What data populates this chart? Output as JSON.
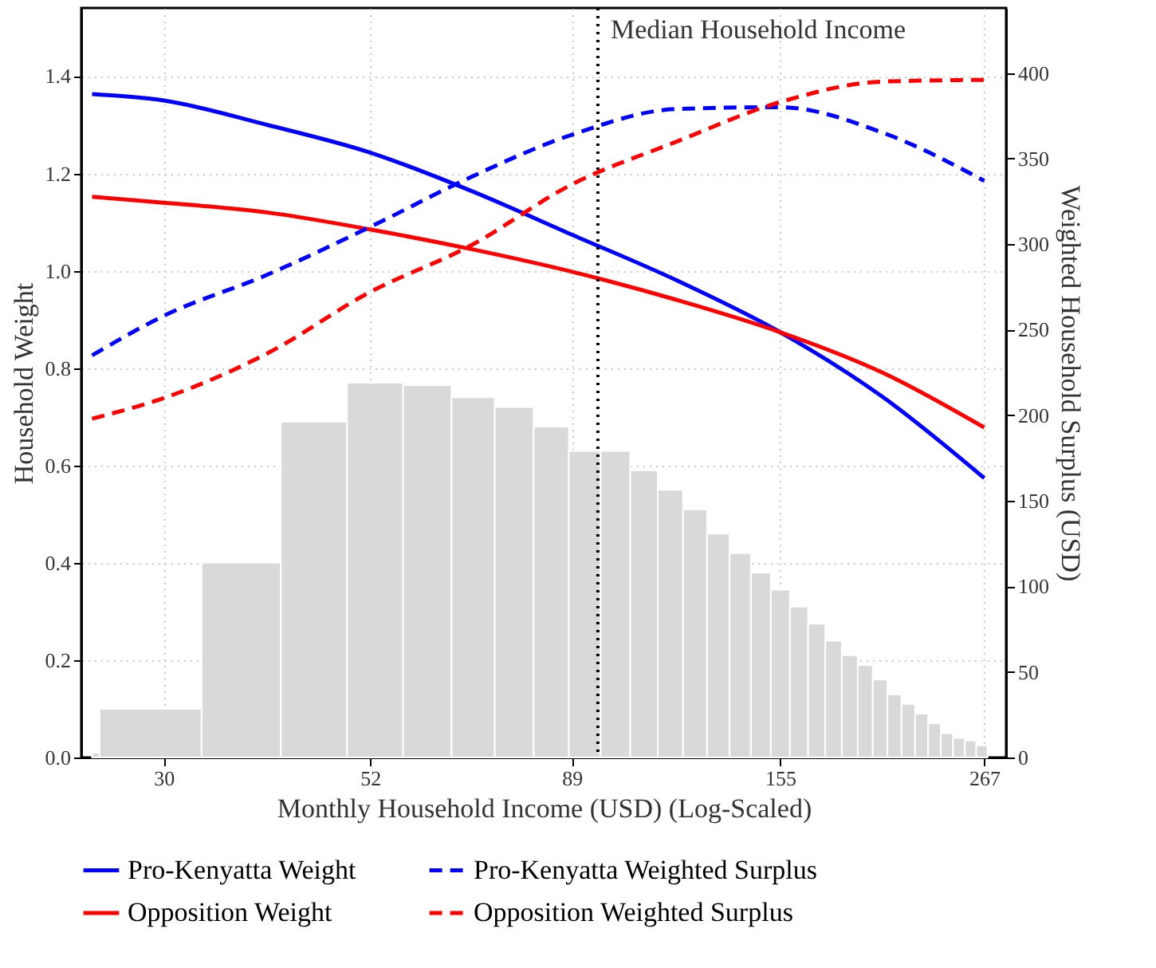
{
  "chart_data": {
    "type": "line",
    "xlabel": "Monthly Household Income (USD) (Log-Scaled)",
    "ylabel": "Household Weight",
    "y2label": "Weighted Household Surplus (USD)",
    "log": "x",
    "xlim": [
      24.1,
      283
    ],
    "xticks": [
      30,
      52,
      89,
      155,
      267
    ],
    "ylim": [
      0,
      1.54
    ],
    "yticks": [
      {
        "value": 0,
        "label": "0.0"
      },
      {
        "value": 0.2,
        "label": "0.2"
      },
      {
        "value": 0.4,
        "label": "0.4"
      },
      {
        "value": 0.6,
        "label": "0.6"
      },
      {
        "value": 0.8,
        "label": "0.8"
      },
      {
        "value": 1.0,
        "label": "1.0"
      },
      {
        "value": 1.2,
        "label": "1.2"
      },
      {
        "value": 1.4,
        "label": "1.4"
      }
    ],
    "y2lim": [
      0,
      438
    ],
    "y2ticks": [
      0,
      50,
      100,
      150,
      200,
      250,
      300,
      350,
      400
    ],
    "grid": true,
    "legend": "bottom",
    "ref_lines": [
      {
        "axis": "x",
        "value": 95.4,
        "label": "Median Household Income",
        "color": "#000000",
        "line_style": "dotted"
      }
    ],
    "series": [
      {
        "type": "histogram",
        "color": "#d9d9d9",
        "bins": [
          24.8,
          25.3,
          33.2,
          41.0,
          48.9,
          56.8,
          64.6,
          72.5,
          80.4,
          88.3,
          96.1,
          104.0,
          111.9,
          119.7,
          127.6,
          135.5,
          143.4,
          151.2,
          159.1,
          167.0,
          174.8,
          182.7,
          190.6,
          198.4,
          206.3,
          214.2,
          222.1,
          229.9,
          237.8,
          245.7,
          253.5,
          261.4,
          269.3
        ],
        "values": [
          0.01,
          0.1,
          0.4,
          0.69,
          0.77,
          0.765,
          0.74,
          0.72,
          0.68,
          0.63,
          0.63,
          0.59,
          0.55,
          0.51,
          0.46,
          0.42,
          0.38,
          0.345,
          0.31,
          0.275,
          0.24,
          0.21,
          0.19,
          0.16,
          0.13,
          0.11,
          0.09,
          0.07,
          0.05,
          0.04,
          0.035,
          0.025
        ]
      },
      {
        "name": "Pro-Kenyatta Weight",
        "color": "#0000ff",
        "line_style": "solid",
        "x": [
          24.8,
          30,
          39.5,
          52,
          67.9,
          89.1,
          117.8,
          155,
          204,
          267
        ],
        "values": [
          1.363,
          1.35,
          1.3,
          1.243,
          1.165,
          1.074,
          0.98,
          0.874,
          0.74,
          0.574
        ]
      },
      {
        "name": "Pro-Kenyatta Weighted Surplus",
        "axis": "y2",
        "color": "#0000ff",
        "line_style": "dashed",
        "x": [
          24.8,
          30,
          39.5,
          52,
          67.9,
          89.1,
          117.8,
          155,
          204,
          267
        ],
        "values": [
          235,
          258,
          282,
          310,
          339,
          364,
          379,
          380,
          365,
          337
        ]
      },
      {
        "name": "Opposition Weight",
        "color": "#ff0000",
        "line_style": "solid",
        "x": [
          24.8,
          30,
          39.5,
          52,
          67.9,
          89.1,
          117.8,
          155,
          204,
          267
        ],
        "values": [
          1.152,
          1.14,
          1.12,
          1.085,
          1.045,
          0.998,
          0.94,
          0.874,
          0.79,
          0.678
        ]
      },
      {
        "name": "Opposition Weighted Surplus",
        "axis": "y2",
        "color": "#ff0000",
        "line_style": "dashed",
        "x": [
          24.8,
          30,
          39.5,
          52,
          67.9,
          89.1,
          117.8,
          155,
          204,
          267
        ],
        "values": [
          198,
          210,
          236,
          272,
          299,
          335,
          360,
          383,
          395,
          396
        ]
      }
    ]
  }
}
